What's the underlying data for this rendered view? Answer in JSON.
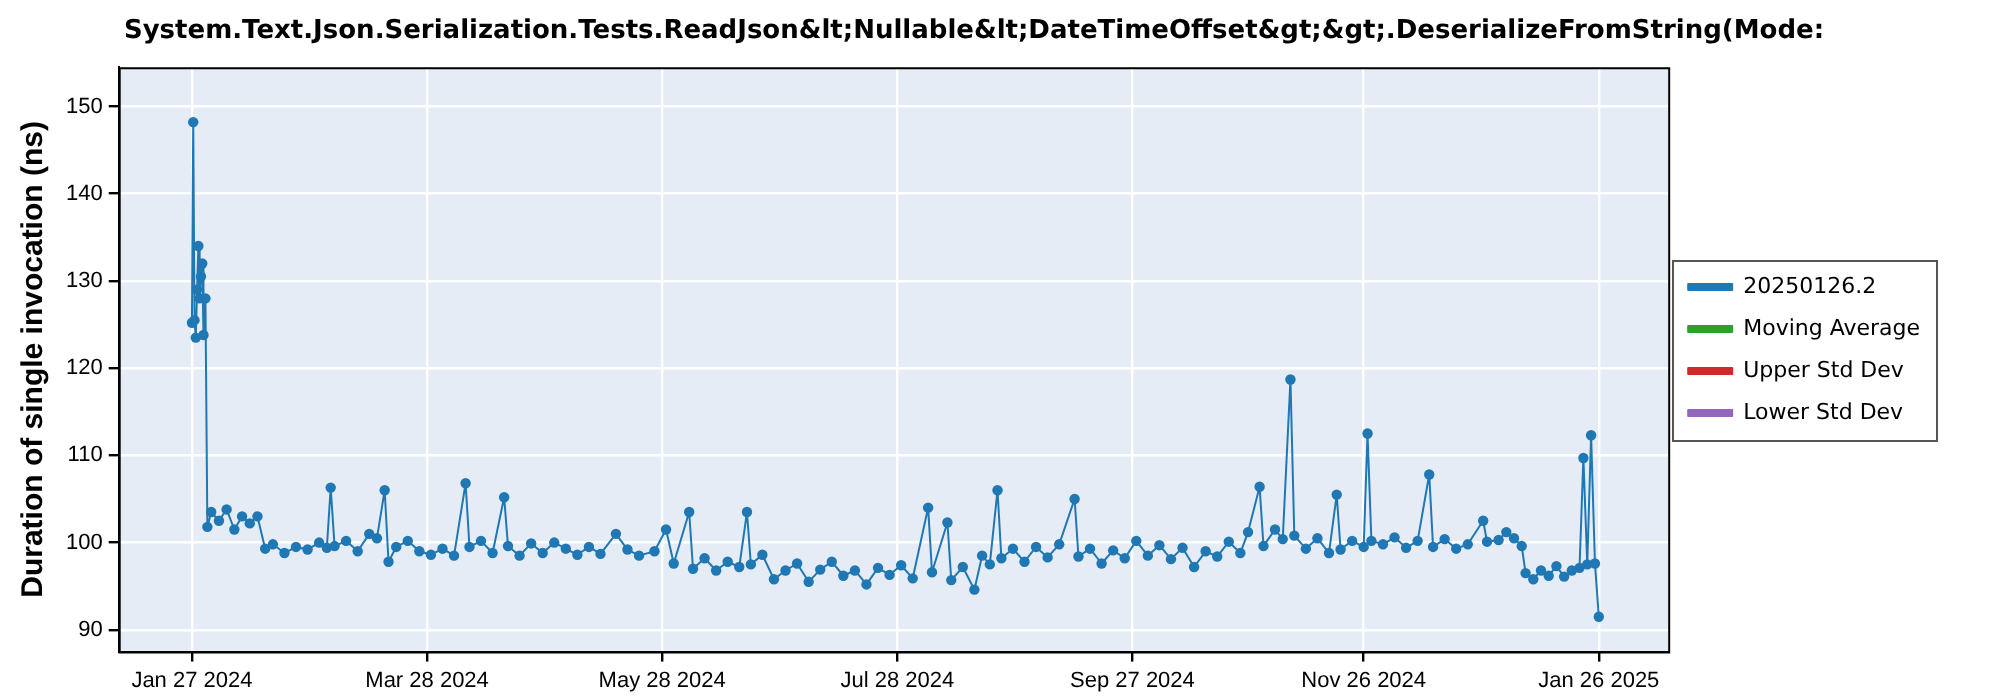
{
  "chart_data": {
    "type": "line",
    "title": "System.Text.Json.Serialization.Tests.ReadJson&lt;Nullable&lt;DateTimeOffset&gt;&gt;.DeserializeFromString(Mode:",
    "ylabel": "Duration of single invocation (ns)",
    "xlim": [
      "2024-01-08",
      "2025-02-13"
    ],
    "xticks": [
      {
        "value": "2024-01-27",
        "label": "Jan 27 2024"
      },
      {
        "value": "2024-03-28",
        "label": "Mar 28 2024"
      },
      {
        "value": "2024-05-28",
        "label": "May 28 2024"
      },
      {
        "value": "2024-07-28",
        "label": "Jul 28 2024"
      },
      {
        "value": "2024-09-27",
        "label": "Sep 27 2024"
      },
      {
        "value": "2024-11-26",
        "label": "Nov 26 2024"
      },
      {
        "value": "2025-01-26",
        "label": "Jan 26 2025"
      }
    ],
    "ylim": [
      87.5,
      154.5
    ],
    "yticks": [
      90,
      100,
      110,
      120,
      130,
      140,
      150
    ],
    "grid": true,
    "legend": "right",
    "marker": "circle",
    "line_style": "solid",
    "series": [
      {
        "name": "20250126.2",
        "color": "#1f77b4",
        "x": [
          "2024-01-27",
          "2024-01-27T08:00",
          "2024-01-27T16:00",
          "2024-01-28",
          "2024-01-28T08:00",
          "2024-01-28T16:00",
          "2024-01-29",
          "2024-01-29T08:00",
          "2024-01-29T16:00",
          "2024-01-30",
          "2024-01-30T12:00",
          "2024-01-31",
          "2024-02-01",
          "2024-02-03",
          "2024-02-05",
          "2024-02-07",
          "2024-02-09",
          "2024-02-11",
          "2024-02-13",
          "2024-02-15",
          "2024-02-17",
          "2024-02-20",
          "2024-02-23",
          "2024-02-26",
          "2024-02-29",
          "2024-03-02",
          "2024-03-03",
          "2024-03-04",
          "2024-03-07",
          "2024-03-10",
          "2024-03-13",
          "2024-03-15",
          "2024-03-17",
          "2024-03-18",
          "2024-03-20",
          "2024-03-23",
          "2024-03-26",
          "2024-03-29",
          "2024-04-01",
          "2024-04-04",
          "2024-04-07",
          "2024-04-08",
          "2024-04-11",
          "2024-04-14",
          "2024-04-17",
          "2024-04-18",
          "2024-04-21",
          "2024-04-24",
          "2024-04-27",
          "2024-04-30",
          "2024-05-03",
          "2024-05-06",
          "2024-05-09",
          "2024-05-12",
          "2024-05-16",
          "2024-05-19",
          "2024-05-22",
          "2024-05-26",
          "2024-05-29",
          "2024-05-31",
          "2024-06-04",
          "2024-06-05",
          "2024-06-08",
          "2024-06-11",
          "2024-06-14",
          "2024-06-17",
          "2024-06-19",
          "2024-06-20",
          "2024-06-23",
          "2024-06-26",
          "2024-06-29",
          "2024-07-02",
          "2024-07-05",
          "2024-07-08",
          "2024-07-11",
          "2024-07-14",
          "2024-07-17",
          "2024-07-20",
          "2024-07-23",
          "2024-07-26",
          "2024-07-29",
          "2024-08-01",
          "2024-08-05",
          "2024-08-06",
          "2024-08-10",
          "2024-08-11",
          "2024-08-14",
          "2024-08-17",
          "2024-08-19",
          "2024-08-21",
          "2024-08-23",
          "2024-08-24",
          "2024-08-27",
          "2024-08-30",
          "2024-09-02",
          "2024-09-05",
          "2024-09-08",
          "2024-09-12",
          "2024-09-13",
          "2024-09-16",
          "2024-09-19",
          "2024-09-22",
          "2024-09-25",
          "2024-09-28",
          "2024-10-01",
          "2024-10-04",
          "2024-10-07",
          "2024-10-10",
          "2024-10-13",
          "2024-10-16",
          "2024-10-19",
          "2024-10-22",
          "2024-10-25",
          "2024-10-27",
          "2024-10-30",
          "2024-10-31",
          "2024-11-03",
          "2024-11-05",
          "2024-11-07",
          "2024-11-08",
          "2024-11-11",
          "2024-11-14",
          "2024-11-17",
          "2024-11-19",
          "2024-11-20",
          "2024-11-23",
          "2024-11-26",
          "2024-11-27",
          "2024-11-28",
          "2024-12-01",
          "2024-12-04",
          "2024-12-07",
          "2024-12-10",
          "2024-12-13",
          "2024-12-14",
          "2024-12-17",
          "2024-12-20",
          "2024-12-23",
          "2024-12-27",
          "2024-12-28",
          "2024-12-31",
          "2025-01-02",
          "2025-01-04",
          "2025-01-06",
          "2025-01-07",
          "2025-01-09",
          "2025-01-11",
          "2025-01-13",
          "2025-01-15",
          "2025-01-17",
          "2025-01-19",
          "2025-01-21",
          "2025-01-22",
          "2025-01-23",
          "2025-01-24",
          "2025-01-25",
          "2025-01-26"
        ],
        "values": [
          125.2,
          148.2,
          125.5,
          123.5,
          129,
          134,
          128,
          130.5,
          132,
          123.8,
          128,
          101.8,
          103.5,
          102.5,
          103.8,
          101.5,
          103,
          102.2,
          103,
          99.3,
          99.8,
          98.8,
          99.5,
          99.2,
          100,
          99.4,
          106.3,
          99.6,
          100.2,
          99,
          101,
          100.5,
          106,
          97.8,
          99.5,
          100.2,
          99,
          98.6,
          99.3,
          98.5,
          106.8,
          99.5,
          100.2,
          98.8,
          105.2,
          99.6,
          98.5,
          99.9,
          98.8,
          100,
          99.3,
          98.6,
          99.5,
          98.7,
          101,
          99.2,
          98.5,
          99,
          101.5,
          97.6,
          103.5,
          97,
          98.2,
          96.8,
          97.8,
          97.2,
          103.5,
          97.5,
          98.6,
          95.8,
          96.8,
          97.6,
          95.5,
          96.9,
          97.8,
          96.2,
          96.8,
          95.2,
          97.1,
          96.3,
          97.4,
          95.9,
          104,
          96.6,
          102.3,
          95.7,
          97.2,
          94.6,
          98.5,
          97.5,
          106,
          98.2,
          99.3,
          97.8,
          99.5,
          98.3,
          99.8,
          105,
          98.4,
          99.3,
          97.6,
          99.1,
          98.2,
          100.2,
          98.5,
          99.7,
          98.1,
          99.4,
          97.2,
          99,
          98.4,
          100.1,
          98.8,
          101.2,
          106.4,
          99.6,
          101.5,
          100.4,
          118.7,
          100.8,
          99.3,
          100.5,
          98.8,
          105.5,
          99.2,
          100.2,
          99.5,
          112.5,
          100.2,
          99.8,
          100.6,
          99.4,
          100.2,
          107.8,
          99.5,
          100.4,
          99.3,
          99.8,
          102.5,
          100.1,
          100.3,
          101.2,
          100.5,
          99.6,
          96.5,
          95.8,
          96.8,
          96.2,
          97.3,
          96.1,
          96.8,
          97.1,
          109.7,
          97.5,
          112.3,
          97.6,
          91.5
        ]
      },
      {
        "name": "Moving Average",
        "color": "#2ca02c"
      },
      {
        "name": "Upper Std Dev",
        "color": "#d62728"
      },
      {
        "name": "Lower Std Dev",
        "color": "#9467bd"
      }
    ]
  }
}
